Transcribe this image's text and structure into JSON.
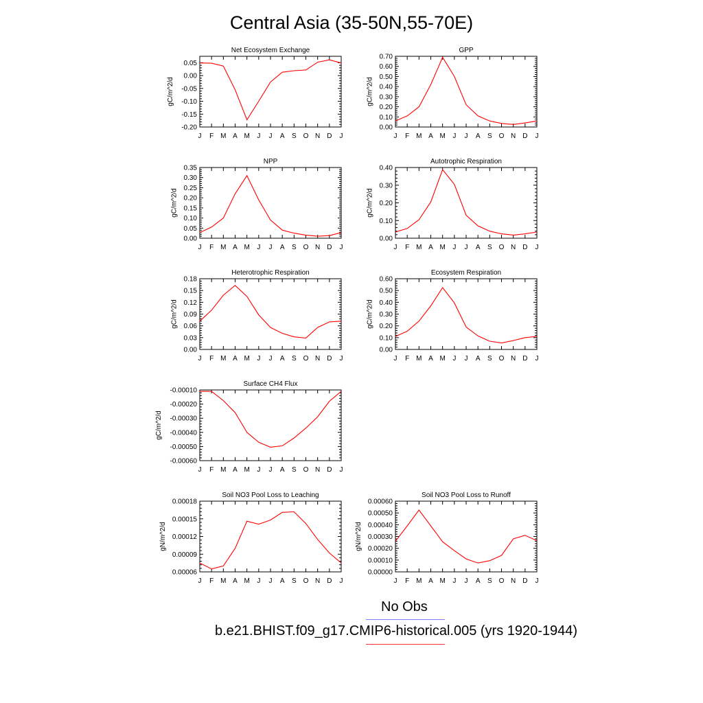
{
  "title": "Central Asia (35-50N,55-70E)",
  "legend": {
    "obs_label": "No Obs",
    "obs_color": "#8080ff",
    "model_label": "b.e21.BHIST.f09_g17.CMIP6-historical.005 (yrs 1920-1944)",
    "model_color": "#ff3030"
  },
  "chart_data": [
    {
      "type": "line",
      "title": "Net Ecosystem Exchange",
      "ylabel": "gC/m^2/d",
      "x": [
        "J",
        "F",
        "M",
        "A",
        "M",
        "J",
        "J",
        "A",
        "S",
        "O",
        "N",
        "D",
        "J"
      ],
      "ylim": [
        -0.2,
        0.075
      ],
      "yticks": [
        -0.2,
        -0.15,
        -0.1,
        -0.05,
        0.0,
        0.05
      ],
      "ytick_labels": [
        "-0.20",
        "-0.15",
        "-0.10",
        "-0.05",
        "0.00",
        "0.05"
      ],
      "series": [
        {
          "color": "#ff0000",
          "values": [
            0.049,
            0.048,
            0.037,
            -0.055,
            -0.172,
            -0.1,
            -0.025,
            0.013,
            0.019,
            0.022,
            0.052,
            0.061,
            0.049
          ]
        }
      ]
    },
    {
      "type": "line",
      "title": "GPP",
      "ylabel": "gC/m^2/d",
      "x": [
        "J",
        "F",
        "M",
        "A",
        "M",
        "J",
        "J",
        "A",
        "S",
        "O",
        "N",
        "D",
        "J"
      ],
      "ylim": [
        0,
        0.7
      ],
      "yticks": [
        0,
        0.1,
        0.2,
        0.3,
        0.4,
        0.5,
        0.6,
        0.7
      ],
      "ytick_labels": [
        "0.00",
        "0.10",
        "0.20",
        "0.30",
        "0.40",
        "0.50",
        "0.60",
        "0.70"
      ],
      "series": [
        {
          "color": "#ff0000",
          "values": [
            0.06,
            0.11,
            0.2,
            0.42,
            0.69,
            0.5,
            0.22,
            0.11,
            0.06,
            0.035,
            0.025,
            0.04,
            0.06
          ]
        }
      ]
    },
    {
      "type": "line",
      "title": "NPP",
      "ylabel": "gC/m^2/d",
      "x": [
        "J",
        "F",
        "M",
        "A",
        "M",
        "J",
        "J",
        "A",
        "S",
        "O",
        "N",
        "D",
        "J"
      ],
      "ylim": [
        0,
        0.35
      ],
      "yticks": [
        0,
        0.05,
        0.1,
        0.15,
        0.2,
        0.25,
        0.3,
        0.35
      ],
      "ytick_labels": [
        "0.00",
        "0.05",
        "0.10",
        "0.15",
        "0.20",
        "0.25",
        "0.30",
        "0.35"
      ],
      "series": [
        {
          "color": "#ff0000",
          "values": [
            0.028,
            0.055,
            0.1,
            0.22,
            0.31,
            0.19,
            0.09,
            0.04,
            0.025,
            0.015,
            0.01,
            0.013,
            0.028
          ]
        }
      ]
    },
    {
      "type": "line",
      "title": "Autotrophic Respiration",
      "ylabel": "gC/m^2/d",
      "x": [
        "J",
        "F",
        "M",
        "A",
        "M",
        "J",
        "J",
        "A",
        "S",
        "O",
        "N",
        "D",
        "J"
      ],
      "ylim": [
        0,
        0.4
      ],
      "yticks": [
        0,
        0.1,
        0.2,
        0.3,
        0.4
      ],
      "ytick_labels": [
        "0.00",
        "0.10",
        "0.20",
        "0.30",
        "0.40"
      ],
      "series": [
        {
          "color": "#ff0000",
          "values": [
            0.035,
            0.055,
            0.105,
            0.205,
            0.388,
            0.305,
            0.13,
            0.07,
            0.04,
            0.025,
            0.018,
            0.025,
            0.035
          ]
        }
      ]
    },
    {
      "type": "line",
      "title": "Heterotrophic Respiration",
      "ylabel": "gC/m^2/d",
      "x": [
        "J",
        "F",
        "M",
        "A",
        "M",
        "J",
        "J",
        "A",
        "S",
        "O",
        "N",
        "D",
        "J"
      ],
      "ylim": [
        0,
        0.18
      ],
      "yticks": [
        0,
        0.03,
        0.06,
        0.09,
        0.12,
        0.15,
        0.18
      ],
      "ytick_labels": [
        "0.00",
        "0.03",
        "0.06",
        "0.09",
        "0.12",
        "0.15",
        "0.18"
      ],
      "series": [
        {
          "color": "#ff0000",
          "values": [
            0.072,
            0.1,
            0.138,
            0.163,
            0.135,
            0.088,
            0.056,
            0.041,
            0.032,
            0.029,
            0.056,
            0.07,
            0.072
          ]
        }
      ]
    },
    {
      "type": "line",
      "title": "Ecosystem Respiration",
      "ylabel": "gC/m^2/d",
      "x": [
        "J",
        "F",
        "M",
        "A",
        "M",
        "J",
        "J",
        "A",
        "S",
        "O",
        "N",
        "D",
        "J"
      ],
      "ylim": [
        0,
        0.6
      ],
      "yticks": [
        0,
        0.1,
        0.2,
        0.3,
        0.4,
        0.5,
        0.6
      ],
      "ytick_labels": [
        "0.00",
        "0.10",
        "0.20",
        "0.30",
        "0.40",
        "0.50",
        "0.60"
      ],
      "series": [
        {
          "color": "#ff0000",
          "values": [
            0.11,
            0.155,
            0.24,
            0.37,
            0.525,
            0.395,
            0.19,
            0.115,
            0.07,
            0.055,
            0.075,
            0.1,
            0.11
          ]
        }
      ]
    },
    {
      "type": "line",
      "title": "Surface CH4 Flux",
      "ylabel": "gC/m^2/d",
      "x": [
        "J",
        "F",
        "M",
        "A",
        "M",
        "J",
        "J",
        "A",
        "S",
        "O",
        "N",
        "D",
        "J"
      ],
      "ylim": [
        -0.0006,
        -0.0001
      ],
      "yticks": [
        -0.0006,
        -0.0005,
        -0.0004,
        -0.0003,
        -0.0002,
        -0.0001
      ],
      "ytick_labels": [
        "-0.00060",
        "-0.00050",
        "-0.00040",
        "-0.00030",
        "-0.00020",
        "-0.00010"
      ],
      "series": [
        {
          "color": "#ff0000",
          "values": [
            -0.00011,
            -0.00011,
            -0.000175,
            -0.00026,
            -0.0004,
            -0.00047,
            -0.000505,
            -0.000495,
            -0.00044,
            -0.00037,
            -0.00029,
            -0.00018,
            -0.00011
          ]
        }
      ]
    },
    {
      "type": "line",
      "title": "Soil NO3 Pool Loss to Leaching",
      "ylabel": "gN/m^2/d",
      "x": [
        "J",
        "F",
        "M",
        "A",
        "M",
        "J",
        "J",
        "A",
        "S",
        "O",
        "N",
        "D",
        "J"
      ],
      "ylim": [
        6e-05,
        0.00018
      ],
      "yticks": [
        6e-05,
        9e-05,
        0.00012,
        0.00015,
        0.00018
      ],
      "ytick_labels": [
        "0.00006",
        "0.00009",
        "0.00012",
        "0.00015",
        "0.00018"
      ],
      "series": [
        {
          "color": "#ff0000",
          "values": [
            7.5e-05,
            6.5e-05,
            7e-05,
            0.0001,
            0.000146,
            0.000141,
            0.000148,
            0.000161,
            0.000162,
            0.000142,
            0.000115,
            9.2e-05,
            7.5e-05
          ]
        }
      ]
    },
    {
      "type": "line",
      "title": "Soil NO3 Pool Loss to Runoff",
      "ylabel": "gN/m^2/d",
      "x": [
        "J",
        "F",
        "M",
        "A",
        "M",
        "J",
        "J",
        "A",
        "S",
        "O",
        "N",
        "D",
        "J"
      ],
      "ylim": [
        0,
        0.0006
      ],
      "yticks": [
        0,
        0.0001,
        0.0002,
        0.0003,
        0.0004,
        0.0005,
        0.0006
      ],
      "ytick_labels": [
        "0.00000",
        "0.00010",
        "0.00020",
        "0.00030",
        "0.00040",
        "0.00050",
        "0.00060"
      ],
      "series": [
        {
          "color": "#ff0000",
          "values": [
            0.00026,
            0.00039,
            0.000525,
            0.00039,
            0.000255,
            0.00018,
            0.00011,
            7.5e-05,
            9.5e-05,
            0.00014,
            0.00028,
            0.00031,
            0.000265
          ]
        }
      ]
    }
  ]
}
